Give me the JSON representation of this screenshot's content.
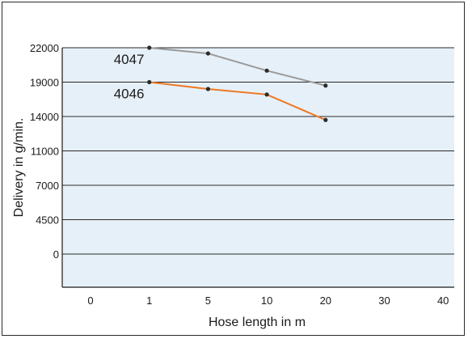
{
  "chart_data": {
    "type": "line",
    "xlabel": "Hose length in m",
    "ylabel": "Delivery in g/min.",
    "x_ticks": [
      "0",
      "1",
      "5",
      "10",
      "20",
      "30",
      "40"
    ],
    "y_ticks": [
      "22000",
      "19000",
      "14000",
      "11000",
      "7000",
      "4500",
      "0"
    ],
    "grid": true,
    "series": [
      {
        "name": "4047",
        "color": "#999999",
        "x": [
          1,
          5,
          10,
          20
        ],
        "y": [
          22000,
          21500,
          20000,
          18500
        ]
      },
      {
        "name": "4046",
        "color": "#ee7722",
        "x": [
          1,
          5,
          10,
          20
        ],
        "y": [
          19000,
          18000,
          17200,
          13700
        ]
      }
    ]
  }
}
